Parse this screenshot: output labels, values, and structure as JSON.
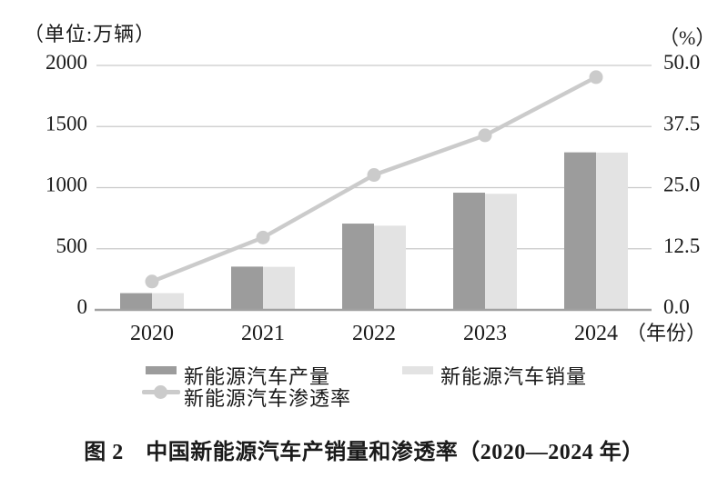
{
  "caption": "图 2　中国新能源汽车产销量和渗透率（2020—2024 年）",
  "chart_data": {
    "type": "bar+line",
    "title": "中国新能源汽车产销量和渗透率（2020—2024 年）",
    "categories": [
      "2020",
      "2021",
      "2022",
      "2023",
      "2024"
    ],
    "series": [
      {
        "name": "新能源汽车产量",
        "type": "bar",
        "axis": "left",
        "values": [
          137,
          354,
          706,
          959,
          1289
        ],
        "color": "#9c9c9c"
      },
      {
        "name": "新能源汽车销量",
        "type": "bar",
        "axis": "left",
        "values": [
          137,
          352,
          689,
          950,
          1287
        ],
        "color": "#e3e3e3"
      },
      {
        "name": "新能源汽车渗透率",
        "type": "line",
        "axis": "right",
        "values": [
          5.8,
          14.8,
          27.6,
          35.7,
          47.6
        ],
        "color": "#cbcbcb"
      }
    ],
    "left_axis": {
      "label": "（单位:万辆）",
      "range": [
        0,
        2000
      ],
      "ticks": [
        0,
        500,
        1000,
        1500,
        2000
      ],
      "tick_labels": [
        "0",
        "500",
        "1000",
        "1500",
        "2000"
      ]
    },
    "right_axis": {
      "label": "（%）",
      "range": [
        0,
        50
      ],
      "ticks": [
        0,
        12.5,
        25,
        37.5,
        50
      ],
      "tick_labels": [
        "0.0",
        "12.5",
        "25.0",
        "37.5",
        "50.0"
      ]
    },
    "x_axis": {
      "suffix": "（年份）"
    },
    "grid": true,
    "legend_position": "bottom",
    "colors": {
      "gridline": "#c9c9c9",
      "baseline": "#a1a1a1",
      "text": "#1a1a1a"
    }
  }
}
